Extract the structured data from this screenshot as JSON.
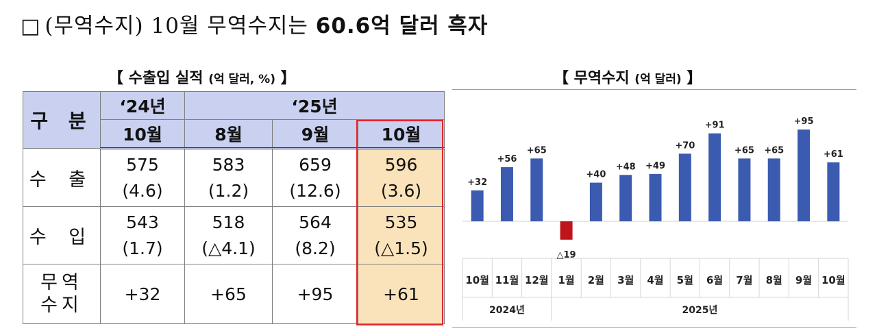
{
  "headline": {
    "box": "□",
    "prefix": "(무역수지) 10월 무역수지는",
    "emphasis": "60.6억 달러 흑자"
  },
  "table": {
    "title": "【 수출입 실적",
    "unit": "(억 달러, %)",
    "title_end": "】",
    "header": {
      "gubun": "구 분",
      "year_2024": "‘24년",
      "year_2025": "‘25년",
      "months": [
        "10월",
        "8월",
        "9월",
        "10월"
      ]
    },
    "rows": [
      {
        "label": "수 출",
        "values": [
          "575",
          "583",
          "659",
          "596"
        ],
        "changes": [
          "(4.6)",
          "(1.2)",
          "(12.6)",
          "(3.6)"
        ]
      },
      {
        "label": "수 입",
        "values": [
          "543",
          "518",
          "564",
          "535"
        ],
        "changes": [
          "(1.7)",
          "(△4.1)",
          "(8.2)",
          "(△1.5)"
        ]
      },
      {
        "label_line1": "무역",
        "label_line2": "수지",
        "values": [
          "+32",
          "+65",
          "+95",
          "+61"
        ]
      }
    ],
    "highlight_color": "#fae3bb",
    "highlight_border": "#e0282c",
    "header_color": "#c9d0f0"
  },
  "chart_title": {
    "title": "【 무역수지",
    "unit": "(억 달러)",
    "title_end": "】"
  },
  "chart_data": {
    "type": "bar",
    "categories": [
      "10월",
      "11월",
      "12월",
      "1월",
      "2월",
      "3월",
      "4월",
      "5월",
      "6월",
      "7월",
      "8월",
      "9월",
      "10월"
    ],
    "values": [
      32,
      56,
      65,
      -19,
      40,
      48,
      49,
      70,
      91,
      65,
      65,
      95,
      61
    ],
    "labels": [
      "+32",
      "+56",
      "+65",
      "△19",
      "+40",
      "+48",
      "+49",
      "+70",
      "+91",
      "+65",
      "+65",
      "+95",
      "+61"
    ],
    "year_groups": [
      {
        "label": "2024년",
        "count": 3
      },
      {
        "label": "2025년",
        "count": 10
      }
    ],
    "positive_color": "#3a5bb0",
    "negative_color": "#c0141c",
    "title": "무역수지",
    "ylabel": "",
    "xlabel": ""
  }
}
